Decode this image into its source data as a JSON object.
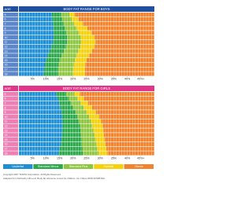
{
  "zones": [
    {
      "name": "Underfat",
      "color": "#1e8fd5"
    },
    {
      "name": "Standard Minus",
      "color": "#2ba84a"
    },
    {
      "name": "Standard Plus",
      "color": "#8dc63f"
    },
    {
      "name": "Overfat",
      "color": "#f6d10a"
    },
    {
      "name": "Obese",
      "color": "#f2832c"
    }
  ],
  "footer": [
    "Copyright 2007 TANITA Corporation. All Rights Reserved.",
    "Adapted from McCarthy HD et al. Body fat reference curves for children. Int J Obes 2006;30:598-602."
  ],
  "chart_data": [
    {
      "type": "range-bar",
      "title": "BODY FAT RANGE FOR BOYS",
      "age_label": "AGE",
      "header_color": "#1f4f9e",
      "age_color": "#5b86c9",
      "categories": [
        "5",
        "6",
        "7",
        "8",
        "9",
        "10",
        "11",
        "12",
        "13",
        "14",
        "15",
        "16",
        "17",
        "18"
      ],
      "series": [
        {
          "values": [
            12.2,
            12.4,
            12.6,
            12.7,
            12.8,
            12.8,
            12.6,
            12.1,
            11.3,
            10.6,
            10.0,
            9.6,
            9.4,
            9.2
          ]
        },
        {
          "values": [
            15.6,
            16.0,
            16.5,
            17.0,
            17.5,
            17.8,
            17.8,
            17.4,
            16.6,
            15.8,
            15.1,
            14.7,
            14.5,
            14.5
          ]
        },
        {
          "values": [
            18.6,
            19.5,
            20.4,
            21.3,
            22.2,
            22.8,
            23.0,
            22.7,
            22.0,
            21.3,
            20.7,
            20.3,
            20.1,
            20.0
          ]
        },
        {
          "values": [
            20.6,
            22.0,
            23.6,
            25.3,
            26.8,
            27.9,
            28.3,
            27.9,
            27.0,
            25.9,
            25.0,
            24.5,
            24.4,
            24.4
          ]
        }
      ],
      "xlim": [
        0,
        50
      ],
      "xticks": [
        {
          "value": 5,
          "label": "5%"
        },
        {
          "value": 10,
          "label": "10%"
        },
        {
          "value": 15,
          "label": "15%"
        },
        {
          "value": 20,
          "label": "20%"
        },
        {
          "value": 25,
          "label": "25%"
        },
        {
          "value": 30,
          "label": "30%"
        },
        {
          "value": 35,
          "label": "35%"
        },
        {
          "value": 40,
          "label": "40%"
        },
        {
          "value": 45,
          "label": "45%+"
        }
      ]
    },
    {
      "type": "range-bar",
      "title": "BODY FAT RANGE FOR GIRLS",
      "age_label": "AGE",
      "header_color": "#e0368a",
      "age_color": "#ee7fb5",
      "categories": [
        "5",
        "6",
        "7",
        "8",
        "9",
        "10",
        "11",
        "12",
        "13",
        "14",
        "15",
        "16",
        "17",
        "18"
      ],
      "series": [
        {
          "values": [
            13.8,
            14.4,
            14.9,
            15.3,
            15.7,
            16.0,
            16.1,
            16.1,
            16.1,
            15.9,
            15.7,
            15.5,
            15.1,
            14.7
          ]
        },
        {
          "values": [
            17.5,
            18.3,
            19.2,
            20.1,
            20.9,
            21.6,
            22.1,
            22.6,
            22.8,
            23.0,
            23.1,
            23.2,
            23.4,
            23.6
          ]
        },
        {
          "values": [
            20.5,
            21.6,
            22.8,
            23.9,
            25.0,
            25.9,
            26.6,
            27.1,
            27.5,
            27.9,
            28.2,
            28.6,
            29.0,
            29.4
          ]
        },
        {
          "values": [
            22.5,
            24.0,
            25.5,
            27.0,
            28.4,
            29.6,
            30.4,
            30.9,
            31.2,
            31.4,
            31.6,
            31.9,
            32.3,
            32.7
          ]
        }
      ],
      "xlim": [
        0,
        50
      ],
      "xticks": [
        {
          "value": 5,
          "label": "5%"
        },
        {
          "value": 10,
          "label": "10%"
        },
        {
          "value": 15,
          "label": "15%"
        },
        {
          "value": 20,
          "label": "20%"
        },
        {
          "value": 25,
          "label": "25%"
        },
        {
          "value": 30,
          "label": "30%"
        },
        {
          "value": 35,
          "label": "35%"
        },
        {
          "value": 40,
          "label": "40%"
        },
        {
          "value": 45,
          "label": "45%+"
        }
      ]
    }
  ]
}
